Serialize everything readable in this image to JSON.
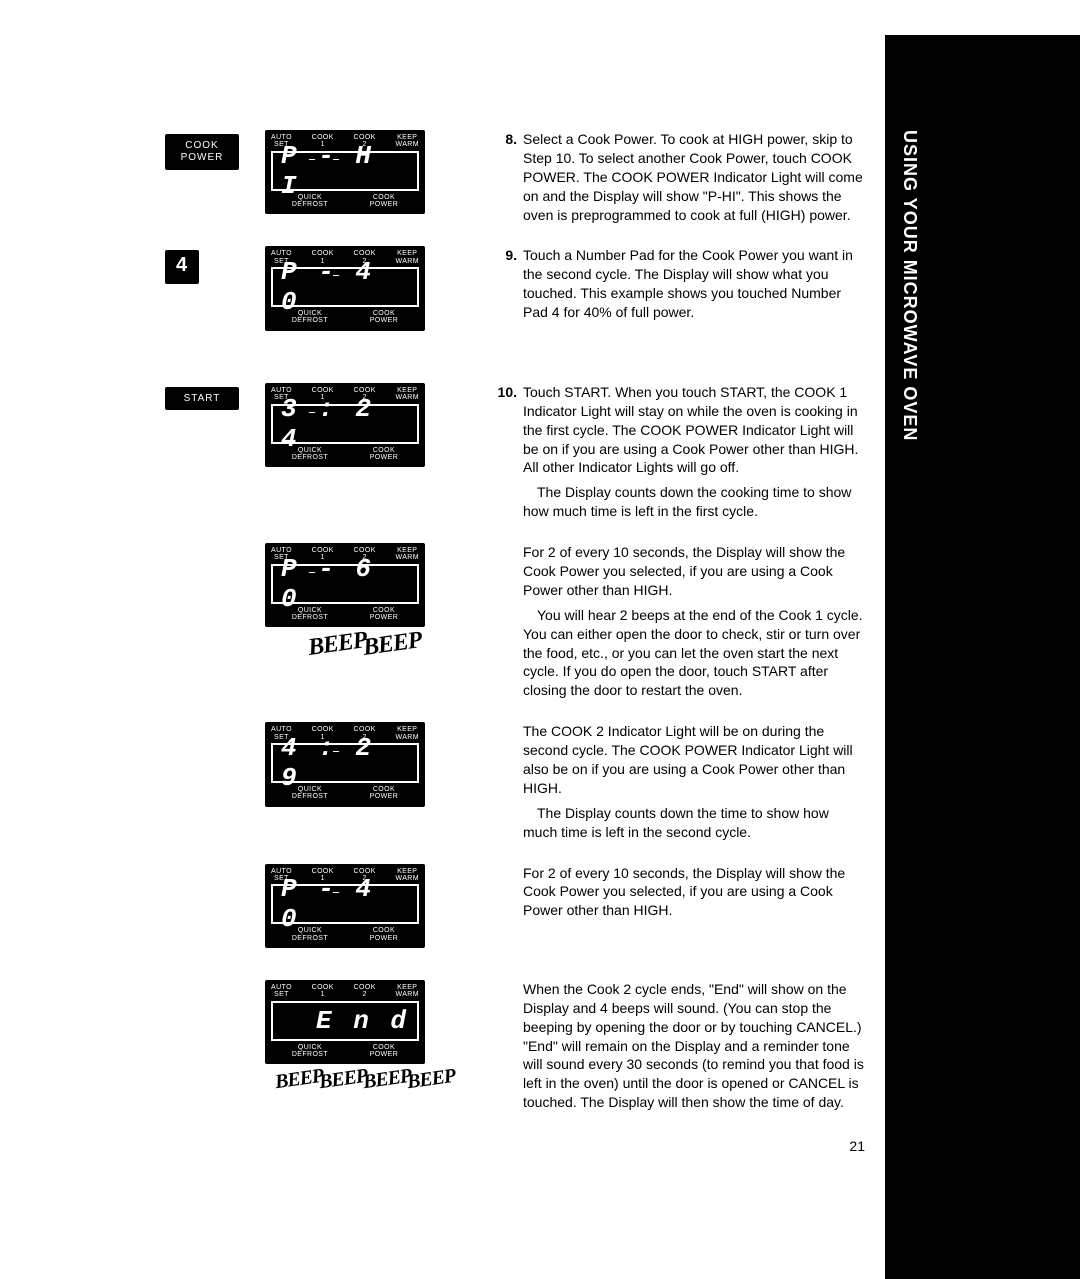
{
  "sideTab": "USING YOUR MICROWAVE OVEN",
  "pageNumber": "21",
  "buttons": {
    "cookPower": "COOK\nPOWER",
    "four": "4",
    "start": "START"
  },
  "displayLabels": {
    "top": [
      "AUTO\nSET",
      "COOK\n1",
      "COOK\n2",
      "KEEP\nWARM"
    ],
    "bottom": [
      "QUICK\nDEFROST",
      "COOK\nPOWER"
    ]
  },
  "displays": [
    {
      "text": "P -  H I",
      "ind1": true,
      "ind2": true
    },
    {
      "text": "P -  4 0",
      "ind1": false,
      "ind2": true
    },
    {
      "text": "3 : 2 4",
      "ind1": true,
      "ind2": false
    },
    {
      "text": "P -  6 0",
      "ind1": true,
      "ind2": false
    },
    {
      "text": "4 : 2 9",
      "ind1": false,
      "ind2": true
    },
    {
      "text": "P -  4 0",
      "ind1": false,
      "ind2": true
    },
    {
      "text": "E  n d",
      "ind1": false,
      "ind2": false
    }
  ],
  "beep2": "BEEP BEEP",
  "beep4": "BEEP BEEP BEEP BEEP",
  "steps": {
    "s8": {
      "num": "8.",
      "p1": "Select a Cook Power. To cook at HIGH power, skip to Step 10. To select another Cook Power, touch COOK POWER. The COOK POWER Indicator Light will come on and the Display will show \"P-HI\". This shows the oven is preprogrammed to cook at full (HIGH) power."
    },
    "s9": {
      "num": "9.",
      "p1": "Touch a Number Pad for the Cook Power you want in the second cycle. The Display will show what you touched. This example shows you touched Number Pad 4 for 40% of full power."
    },
    "s10": {
      "num": "10.",
      "p1": "Touch START. When you touch START, the COOK 1 Indicator Light will stay on while the oven is cooking in the first cycle. The COOK POWER Indicator Light will be on if you are using a Cook Power other than HIGH. All other Indicator Lights will go off.",
      "p2": "The Display counts down the cooking time to show how much time is left in the first cycle.",
      "p3": "For 2 of every 10 seconds, the Display will show the Cook Power you selected, if you are using a Cook Power other than HIGH.",
      "p4": "You will hear 2 beeps at the end of the Cook 1 cycle. You can either open the door to check, stir or turn over the food, etc., or you can let the oven start the next cycle. If you do open the door, touch START after closing the door to restart the oven.",
      "p5": "The COOK 2 Indicator Light will be on during the second cycle. The COOK POWER Indicator Light will also be on if you are using a Cook Power other than HIGH.",
      "p6": "The Display counts down the time to show how much time is left in the second cycle.",
      "p7": "For 2 of every 10 seconds, the Display will show the Cook Power you selected, if you are using a Cook Power other than HIGH.",
      "p8": "When the Cook 2 cycle ends, \"End\" will show on the Display and 4 beeps will sound. (You can stop the beeping by opening the door or by touching CANCEL.) \"End\" will remain on the Display and a reminder tone will sound every 30 seconds (to remind you that food is left in the oven) until the door is opened or CANCEL is touched. The Display will then show the time of day."
    }
  }
}
